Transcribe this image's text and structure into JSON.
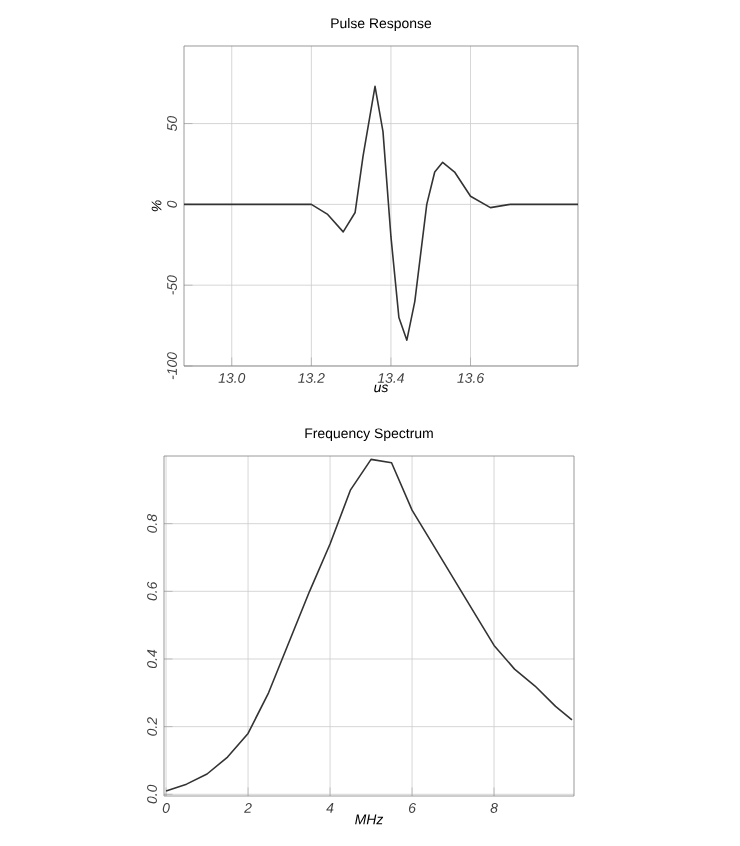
{
  "chart_data": [
    {
      "type": "line",
      "title": "Pulse Response",
      "xlabel": "us",
      "ylabel": "%",
      "color": "#333333",
      "grid": true,
      "x": [
        12.88,
        13.2,
        13.24,
        13.28,
        13.31,
        13.33,
        13.36,
        13.38,
        13.4,
        13.42,
        13.44,
        13.46,
        13.49,
        13.51,
        13.53,
        13.56,
        13.6,
        13.65,
        13.7,
        13.87
      ],
      "values": [
        0,
        0,
        -6,
        -17,
        -5,
        30,
        73,
        45,
        -20,
        -70,
        -84,
        -60,
        0,
        20,
        26,
        20,
        5,
        -2,
        0,
        0
      ],
      "xlim": [
        12.88,
        13.87
      ],
      "ylim": [
        -100,
        98
      ],
      "xticks": [
        {
          "value": 13.0,
          "label": "13.0"
        },
        {
          "value": 13.2,
          "label": "13.2"
        },
        {
          "value": 13.4,
          "label": "13.4"
        },
        {
          "value": 13.6,
          "label": "13.6"
        }
      ],
      "yticks": [
        -100,
        -50,
        0,
        50
      ]
    },
    {
      "type": "line",
      "title": "Frequency Spectrum",
      "xlabel": "MHz",
      "color": "#333333",
      "grid": true,
      "x": [
        0,
        0.5,
        1,
        1.5,
        2,
        2.5,
        3,
        3.5,
        4,
        4.5,
        5,
        5.5,
        6,
        6.5,
        7,
        7.5,
        8,
        8.5,
        9,
        9.5,
        9.9
      ],
      "values": [
        0.01,
        0.03,
        0.06,
        0.11,
        0.18,
        0.3,
        0.45,
        0.6,
        0.74,
        0.9,
        0.99,
        0.98,
        0.84,
        0.74,
        0.64,
        0.54,
        0.44,
        0.37,
        0.32,
        0.26,
        0.22
      ],
      "xlim": [
        -0.05,
        9.95
      ],
      "ylim": [
        -0.005,
        1.0
      ],
      "xticks": [
        0,
        2,
        4,
        6,
        8
      ],
      "yticks": [
        {
          "value": 0,
          "label": "0.0"
        },
        {
          "value": 0.2,
          "label": "0.2"
        },
        {
          "value": 0.4,
          "label": "0.4"
        },
        {
          "value": 0.6,
          "label": "0.6"
        },
        {
          "value": 0.8,
          "label": "0.8"
        }
      ]
    }
  ]
}
